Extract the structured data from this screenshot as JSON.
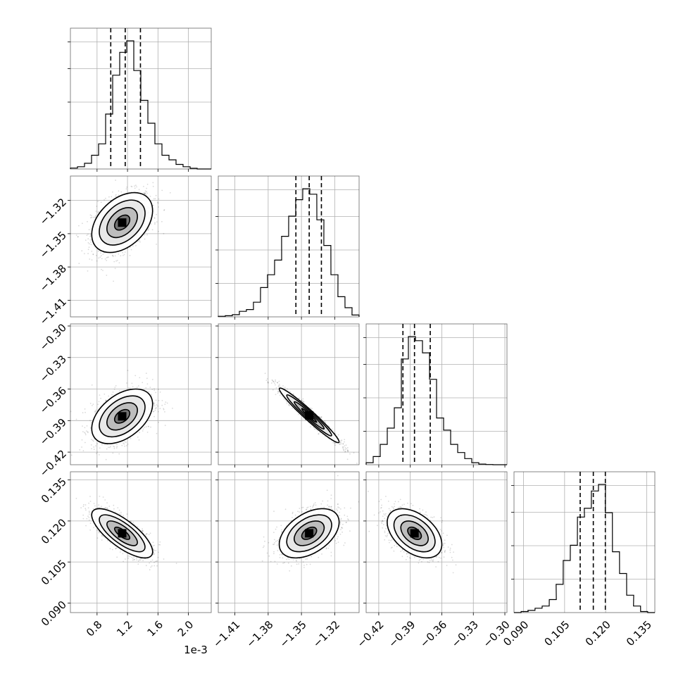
{
  "chart_data": {
    "type": "corner",
    "parameters": 4,
    "offset_label": "1e-3",
    "grid": true,
    "quantile_lines": "dashed",
    "params": [
      {
        "index": 0,
        "unit_scale": "1e-3",
        "range": [
          0.45,
          2.3
        ],
        "ticks": [
          0.8,
          1.2,
          1.6,
          2.0
        ],
        "tick_labels": [
          "0.8",
          "1.2",
          "1.6",
          "2.0"
        ],
        "quantiles": [
          0.98,
          1.17,
          1.37
        ],
        "hist_x": [
          0.45,
          0.5425,
          0.635,
          0.7275,
          0.82,
          0.9125,
          1.005,
          1.0975,
          1.19,
          1.2825,
          1.375,
          1.4675,
          1.56,
          1.6525,
          1.745,
          1.8375,
          1.93,
          2.0225,
          2.115,
          2.2075
        ],
        "hist_counts": [
          0.4,
          1,
          2.5,
          6,
          11,
          24,
          41,
          51,
          56,
          43,
          30,
          20,
          11,
          6,
          4,
          2,
          1,
          0.3,
          0,
          0
        ]
      },
      {
        "index": 1,
        "range": [
          -1.425,
          -1.298
        ],
        "ticks": [
          -1.41,
          -1.38,
          -1.35,
          -1.32
        ],
        "tick_labels": [
          "−1.41",
          "−1.38",
          "−1.35",
          "−1.32"
        ],
        "quantiles": [
          -1.355,
          -1.343,
          -1.332
        ],
        "hist_x": [
          -1.425,
          -1.4187,
          -1.4123,
          -1.406,
          -1.3996,
          -1.3933,
          -1.3869,
          -1.3806,
          -1.3742,
          -1.3679,
          -1.3615,
          -1.3552,
          -1.3488,
          -1.3425,
          -1.3361,
          -1.3298,
          -1.3234,
          -1.3171,
          -1.3107,
          -1.3044
        ],
        "hist_counts": [
          0.3,
          0.6,
          1.2,
          3,
          4,
          8,
          16,
          23,
          31,
          44,
          55,
          64,
          70,
          67,
          53,
          39,
          23,
          11,
          5,
          1
        ]
      },
      {
        "index": 2,
        "range": [
          -0.432,
          -0.298
        ],
        "ticks": [
          -0.42,
          -0.39,
          -0.36,
          -0.33,
          -0.3
        ],
        "tick_labels": [
          "−0.42",
          "−0.39",
          "−0.36",
          "−0.33",
          "−0.30"
        ],
        "quantiles": [
          -0.397,
          -0.386,
          -0.371
        ],
        "hist_x": [
          -0.432,
          -0.4253,
          -0.4186,
          -0.4119,
          -0.4052,
          -0.3985,
          -0.3918,
          -0.3851,
          -0.3784,
          -0.3717,
          -0.365,
          -0.3583,
          -0.3516,
          -0.3449,
          -0.3382,
          -0.3315,
          -0.3248,
          -0.3181,
          -0.3114,
          -0.3047
        ],
        "hist_counts": [
          1,
          4,
          10,
          18,
          28,
          52,
          63,
          61,
          55,
          42,
          23,
          17,
          10,
          6,
          3,
          1,
          0.3,
          0.1,
          0,
          0
        ]
      },
      {
        "index": 3,
        "range": [
          0.0865,
          0.138
        ],
        "ticks": [
          0.09,
          0.105,
          0.12,
          0.135
        ],
        "tick_labels": [
          "0.090",
          "0.105",
          "0.120",
          "0.135"
        ],
        "quantiles": [
          0.1107,
          0.1155,
          0.1199
        ],
        "hist_x": [
          0.0865,
          0.0891,
          0.0916,
          0.0942,
          0.0968,
          0.0994,
          0.1019,
          0.1045,
          0.1071,
          0.1097,
          0.1122,
          0.1148,
          0.1174,
          0.1199,
          0.1225,
          0.1251,
          0.1277,
          0.1302,
          0.1328,
          0.1354
        ],
        "hist_counts": [
          0,
          0.5,
          1,
          2,
          3,
          6,
          13,
          24,
          31,
          44,
          48,
          56,
          59,
          46,
          28,
          18,
          8,
          3,
          0.5,
          0
        ]
      }
    ],
    "pairs": [
      {
        "row": 1,
        "col": 0,
        "center": [
          1.13,
          -1.34
        ],
        "spread": [
          0.2,
          0.0135
        ],
        "corr": 0.4,
        "contour_scales": [
          2.0,
          1.5,
          1.0,
          0.5
        ]
      },
      {
        "row": 2,
        "col": 0,
        "center": [
          1.13,
          -0.386
        ],
        "spread": [
          0.2,
          0.013
        ],
        "corr": 0.45,
        "contour_scales": [
          2.0,
          1.5,
          1.0,
          0.5
        ]
      },
      {
        "row": 2,
        "col": 1,
        "center": [
          -1.343,
          -0.385
        ],
        "spread": [
          0.0135,
          0.013
        ],
        "corr": -0.97,
        "contour_scales": [
          2.0,
          1.5,
          1.0,
          0.5
        ]
      },
      {
        "row": 3,
        "col": 0,
        "center": [
          1.13,
          0.1155
        ],
        "spread": [
          0.2,
          0.0045
        ],
        "corr": -0.75,
        "contour_scales": [
          2.0,
          1.5,
          1.0,
          0.5
        ]
      },
      {
        "row": 3,
        "col": 1,
        "center": [
          -1.343,
          0.1155
        ],
        "spread": [
          0.0135,
          0.0045
        ],
        "corr": 0.45,
        "contour_scales": [
          2.0,
          1.5,
          1.0,
          0.5
        ]
      },
      {
        "row": 3,
        "col": 2,
        "center": [
          -0.386,
          0.1155
        ],
        "spread": [
          0.013,
          0.0045
        ],
        "corr": -0.45,
        "contour_scales": [
          2.0,
          1.5,
          1.0,
          0.5
        ]
      }
    ]
  }
}
